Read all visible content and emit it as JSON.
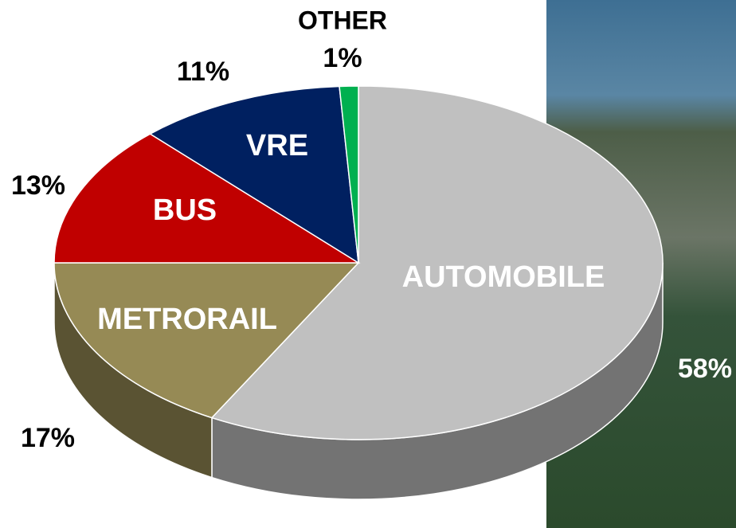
{
  "chart_data": {
    "type": "pie",
    "categories": [
      "AUTOMOBILE",
      "METRORAIL",
      "BUS",
      "VRE",
      "OTHER"
    ],
    "values": [
      58,
      17,
      13,
      11,
      1
    ],
    "value_labels": [
      "58%",
      "17%",
      "13%",
      "11%",
      "1%"
    ],
    "colors": [
      "#c0c0c0",
      "#968a55",
      "#c00000",
      "#002060",
      "#00b050"
    ]
  }
}
